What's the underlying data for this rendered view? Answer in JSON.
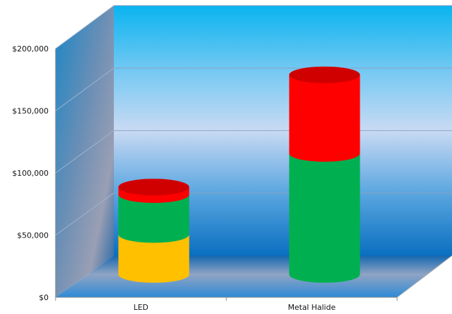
{
  "chart_data": {
    "type": "bar",
    "stacked": true,
    "style": "3d-cylinder",
    "title": "",
    "xlabel": "",
    "ylabel": "",
    "categories": [
      "LED",
      "Metal Halide"
    ],
    "series": [
      {
        "values": [
          32000,
          97000
        ],
        "color": "#ffc000",
        "colors_by_category": [
          "#ffc000",
          "#00b050"
        ]
      },
      {
        "values": [
          32000,
          63000
        ],
        "color": "#00b050",
        "colors_by_category": [
          "#00b050",
          "#ff0000"
        ]
      },
      {
        "values": [
          6000,
          0
        ],
        "color": "#ff0000",
        "colors_by_category": [
          "#ff0000",
          "#ff0000"
        ]
      }
    ],
    "ylim": [
      0,
      200000
    ],
    "yticks": [
      0,
      50000,
      100000,
      150000,
      200000
    ],
    "ytick_labels": [
      "$0",
      "$50,000",
      "$100,000",
      "$150,000",
      "$200,000"
    ],
    "grid": true,
    "legend": "none",
    "colors": {
      "back_wall_top": "#00b0f0",
      "back_wall_mid": "#c5d9f1",
      "back_wall_bottom": "#0070c0",
      "side_wall": "#4f81bd",
      "floor": "#a6a6a6"
    }
  }
}
